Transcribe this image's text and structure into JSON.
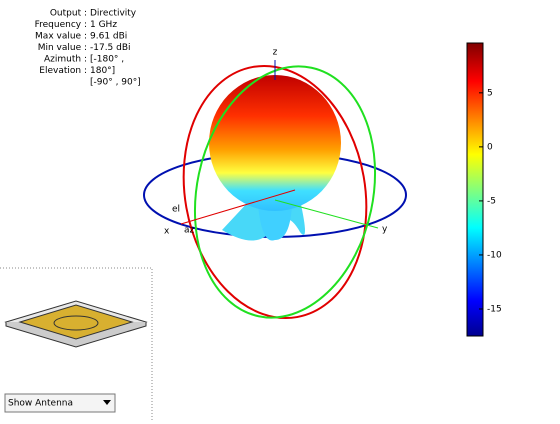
{
  "chart_data": {
    "type": "pattern3d",
    "info": [
      {
        "label": "Output :",
        "value": "Directivity"
      },
      {
        "label": "Frequency :",
        "value": "1 GHz"
      },
      {
        "label": "Max value :",
        "value": "9.61 dBi"
      },
      {
        "label": "Min value :",
        "value": "-17.5 dBi"
      },
      {
        "label": "Azimuth :",
        "value": "[-180° ,"
      },
      {
        "label": "Elevation :",
        "value": "180°]"
      },
      {
        "value": "[-90° , 90°]"
      }
    ],
    "axis_labels": {
      "x": "x",
      "y": "y",
      "z": "z",
      "az": "az",
      "el": "el"
    },
    "colorbar": {
      "lim": [
        -17.5,
        9.61
      ],
      "ticks": [
        5,
        0,
        -5,
        -10,
        -15
      ]
    }
  },
  "controls": {
    "dropdown": "Show Antenna"
  }
}
